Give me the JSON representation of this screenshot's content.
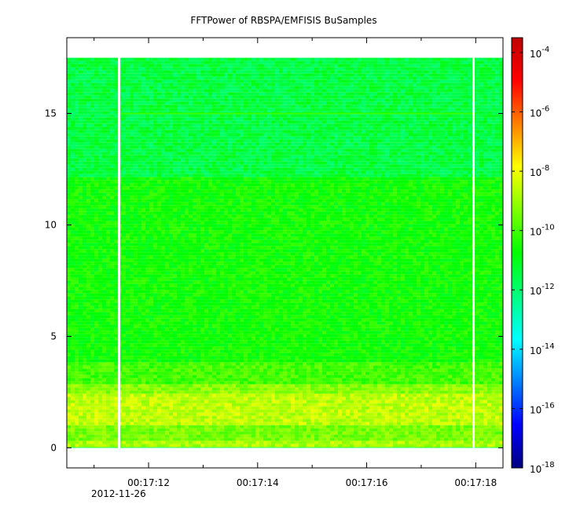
{
  "chart_data": {
    "type": "heatmap",
    "title": "FFTPower of RBSPA/EMFISIS  BuSamples",
    "xlabel": "",
    "ylabel": "",
    "y_ticks": [
      {
        "value": 0,
        "label": "0"
      },
      {
        "value": 5,
        "label": "5"
      },
      {
        "value": 10,
        "label": "10"
      },
      {
        "value": 15,
        "label": "15"
      }
    ],
    "ylim": [
      -0.9,
      18.4
    ],
    "x_ticks": [
      {
        "value": 12,
        "label": "00:17:12"
      },
      {
        "value": 14,
        "label": "00:17:14"
      },
      {
        "value": 16,
        "label": "00:17:16"
      },
      {
        "value": 18,
        "label": "00:17:18"
      }
    ],
    "x_minor_ticks": [
      11.0,
      13.0,
      15.0,
      17.0,
      19.0
    ],
    "xlim": [
      10.5,
      18.5
    ],
    "x_date_label": "2012-11-26",
    "colorbar": {
      "scale": "log",
      "range_exponent": [
        -18,
        -3.5
      ],
      "ticks": [
        {
          "base": "10",
          "exp": "-4",
          "value": -4
        },
        {
          "base": "10",
          "exp": "-6",
          "value": -6
        },
        {
          "base": "10",
          "exp": "-8",
          "value": -8
        },
        {
          "base": "10",
          "exp": "-10",
          "value": -10
        },
        {
          "base": "10",
          "exp": "-12",
          "value": -12
        },
        {
          "base": "10",
          "exp": "-14",
          "value": -14
        },
        {
          "base": "10",
          "exp": "-16",
          "value": -16
        },
        {
          "base": "10",
          "exp": "-18",
          "value": -18
        }
      ],
      "colors": [
        "#00007f",
        "#0000ff",
        "#007fff",
        "#00ffff",
        "#00ff7f",
        "#00ff00",
        "#7fff00",
        "#ffff00",
        "#ff7f00",
        "#ff0000",
        "#bf0000"
      ]
    },
    "data_extent": {
      "x": [
        10.5,
        18.5
      ],
      "y": [
        0,
        17.5
      ]
    },
    "gaps_x": [
      11.46,
      17.96
    ],
    "power_bands": [
      {
        "y": [
          0.0,
          0.3
        ],
        "log_power": -8.8
      },
      {
        "y": [
          0.3,
          1.0
        ],
        "log_power": -9.4
      },
      {
        "y": [
          1.0,
          2.4
        ],
        "log_power": -8.6
      },
      {
        "y": [
          2.4,
          2.8
        ],
        "log_power": -9.2
      },
      {
        "y": [
          2.8,
          3.9
        ],
        "log_power": -10.0
      },
      {
        "y": [
          3.9,
          12.2
        ],
        "log_power": -10.6
      },
      {
        "y": [
          12.2,
          17.5
        ],
        "log_power": -11.5
      }
    ],
    "line_feature": {
      "y": 15.0,
      "x": [
        11.5,
        18.0
      ],
      "log_power": -10.2
    }
  }
}
